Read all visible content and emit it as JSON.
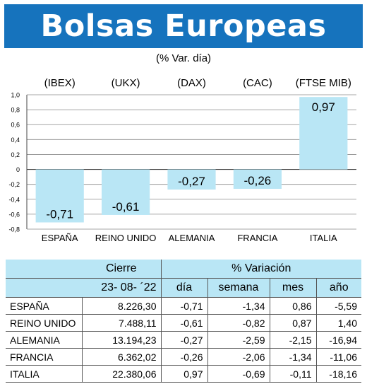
{
  "header": {
    "title": "Bolsas Europeas",
    "subtitle": "(% Var. día)"
  },
  "colors": {
    "banner": "#1673bd",
    "bar": "#b9e6f5",
    "table_header": "#b9e6f5"
  },
  "chart_data": {
    "type": "bar",
    "index_labels": [
      "(IBEX)",
      "(UKX)",
      "(DAX)",
      "(CAC)",
      "(FTSE MIB)"
    ],
    "categories": [
      "ESPAÑA",
      "REINO UNIDO",
      "ALEMANIA",
      "FRANCIA",
      "ITALIA"
    ],
    "values": [
      -0.71,
      -0.61,
      -0.27,
      -0.26,
      0.97
    ],
    "value_labels": [
      "-0,71",
      "-0,61",
      "-0,27",
      "-0,26",
      "0,97"
    ],
    "ylim": [
      -0.8,
      1.0
    ],
    "y_ticks": [
      1.0,
      0.8,
      0.6,
      0.4,
      0.2,
      0,
      -0.2,
      -0.4,
      -0.6,
      -0.8
    ],
    "y_tick_labels": [
      "1,0",
      "0,8",
      "0,6",
      "0,4",
      "0,2",
      "0",
      "-0,2",
      "-0,4",
      "-0,6",
      "-0,8"
    ],
    "grid": true,
    "title": "",
    "xlabel": "",
    "ylabel": ""
  },
  "table": {
    "group_headers": {
      "cierre": "Cierre",
      "variacion": "% Variación"
    },
    "date": "23- 08- ´22",
    "columns": [
      "día",
      "semana",
      "mes",
      "año"
    ],
    "rows": [
      {
        "country": "ESPAÑA",
        "cierre": "8.226,30",
        "dia": "-0,71",
        "semana": "-1,34",
        "mes": "0,86",
        "ano": "-5,59"
      },
      {
        "country": "REINO UNIDO",
        "cierre": "7.488,11",
        "dia": "-0,61",
        "semana": "-0,82",
        "mes": "0,87",
        "ano": "1,40"
      },
      {
        "country": "ALEMANIA",
        "cierre": "13.194,23",
        "dia": "-0,27",
        "semana": "-2,59",
        "mes": "-2,15",
        "ano": "-16,94"
      },
      {
        "country": "FRANCIA",
        "cierre": "6.362,02",
        "dia": "-0,26",
        "semana": "-2,06",
        "mes": "-1,34",
        "ano": "-11,06"
      },
      {
        "country": "ITALIA",
        "cierre": "22.380,06",
        "dia": "0,97",
        "semana": "-0,69",
        "mes": "-0,11",
        "ano": "-18,16"
      }
    ]
  }
}
